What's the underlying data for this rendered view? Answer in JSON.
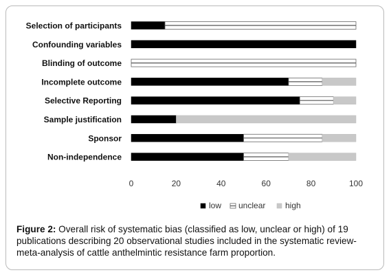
{
  "chart_data": {
    "type": "bar",
    "stacked": true,
    "orientation": "horizontal",
    "categories": [
      "Selection of participants",
      "Confounding variables",
      "Blinding of outcome",
      "Incomplete outcome",
      "Selective Reporting",
      "Sample justification",
      "Sponsor",
      "Non-independence"
    ],
    "series": [
      {
        "name": "low",
        "values": [
          15,
          100,
          0,
          70,
          75,
          20,
          50,
          50
        ]
      },
      {
        "name": "unclear",
        "values": [
          85,
          0,
          100,
          15,
          15,
          0,
          35,
          20
        ]
      },
      {
        "name": "high",
        "values": [
          0,
          0,
          0,
          15,
          10,
          80,
          15,
          30
        ]
      }
    ],
    "xlim": [
      0,
      100
    ],
    "xticks": [
      0,
      20,
      40,
      60,
      80,
      100
    ],
    "legend_position": "bottom",
    "grid": false,
    "colors": {
      "low": "#000000",
      "unclear": "#ffffff",
      "high": "#c8c8c8"
    }
  },
  "caption": {
    "label": "Figure 2:",
    "text": " Overall risk of systematic bias (classified as low, unclear or high) of 19 publications describing 20 observational studies included in the systematic review-meta-analysis of cattle anthelmintic resistance farm proportion."
  }
}
